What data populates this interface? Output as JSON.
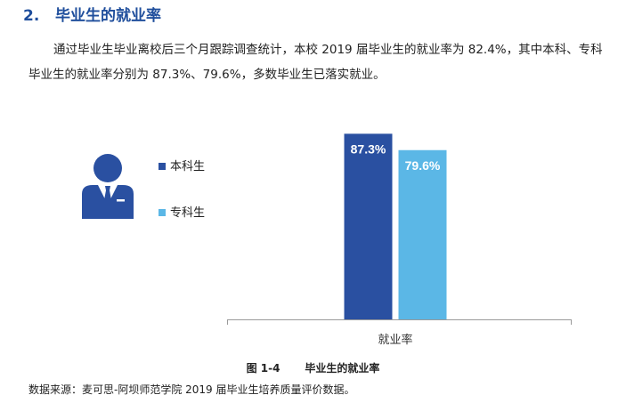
{
  "section": {
    "number": "2.",
    "title": "毕业生的就业率"
  },
  "paragraph": "通过毕业生毕业离校后三个月跟踪调查统计，本校 2019 届毕业生的就业率为 82.4%，其中本科、专科毕业生的就业率分别为 87.3%、79.6%，多数毕业生已落实就业。",
  "icon": "person-in-suit-icon",
  "colors": {
    "heading": "#1f4e9c",
    "benke": "#2a50a1",
    "zhuanke": "#5bb7e6",
    "axis": "#9a9a9a",
    "label": "#ffffff"
  },
  "chart_data": {
    "type": "bar",
    "categories": [
      "就业率"
    ],
    "series": [
      {
        "name": "本科生",
        "values": [
          87.3
        ],
        "labels": [
          "87.3%"
        ]
      },
      {
        "name": "专科生",
        "values": [
          79.6
        ],
        "labels": [
          "79.6%"
        ]
      }
    ],
    "xlabel": "就业率",
    "ylim": [
      0,
      100
    ],
    "grid": false,
    "legend": "left"
  },
  "caption": {
    "figure_no": "图 1-4",
    "title": "毕业生的就业率"
  },
  "source": "数据来源：麦可思-阿坝师范学院 2019 届毕业生培养质量评价数据。"
}
